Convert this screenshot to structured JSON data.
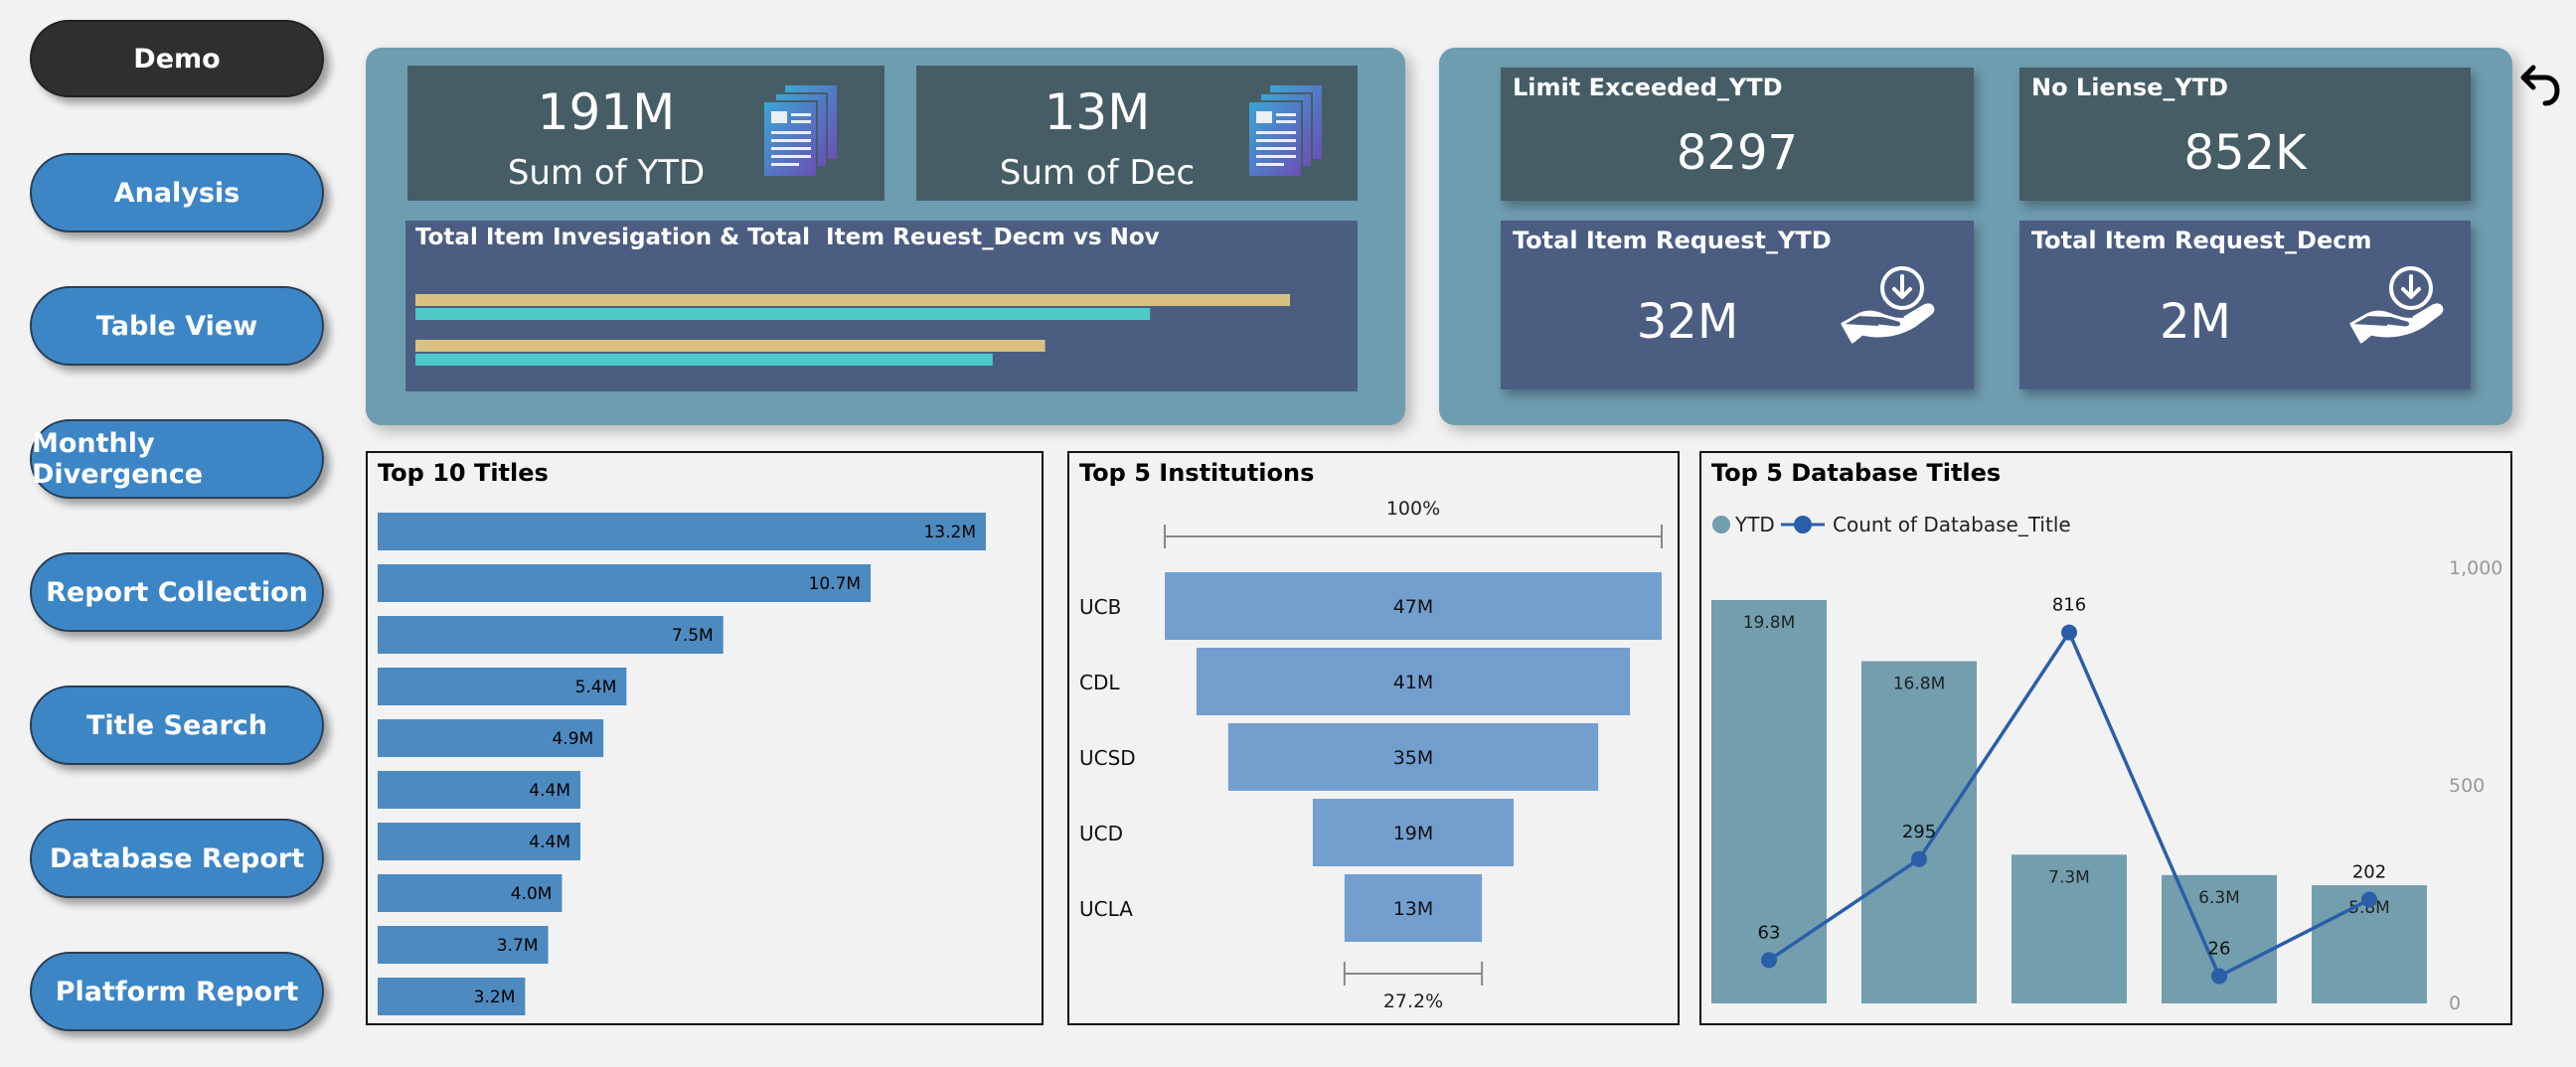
{
  "nav": {
    "items": [
      {
        "label": "Demo",
        "active": true
      },
      {
        "label": "Analysis"
      },
      {
        "label": "Table View"
      },
      {
        "label": "Monthly Divergence"
      },
      {
        "label": "Report Collection"
      },
      {
        "label": "Title Search"
      },
      {
        "label": "Database Report"
      },
      {
        "label": "Platform Report"
      }
    ]
  },
  "kpis": {
    "ytd_value": "191M",
    "ytd_label": "Sum of YTD",
    "dec_value": "13M",
    "dec_label": "Sum of Dec"
  },
  "right_cards": {
    "limit_title": "Limit Exceeded_YTD",
    "limit_value": "8297",
    "nolicense_title": "No Liense_YTD",
    "nolicense_value": "852K",
    "req_ytd_title": "Total Item Request_YTD",
    "req_ytd_value": "32M",
    "req_dec_title": "Total Item Request_Decm",
    "req_dec_value": "2M"
  },
  "colors": {
    "panel": "#6f9db0",
    "card_dark": "#465d66",
    "card_blue": "#4b5e82",
    "bar_tan": "#d9c182",
    "bar_teal": "#4ec9c9",
    "bar_blue": "#4d8ac0",
    "funnel": "#739fcf",
    "db_bar": "#729eae",
    "line": "#2b5ea8"
  },
  "chart_data": [
    {
      "type": "bar",
      "title": "Total Item Invesigation & Total  Item Reuest_Decm vs Nov",
      "orientation": "horizontal",
      "series": [
        {
          "name": "Investigation",
          "values": [
            1.0,
            0.72
          ],
          "color": "#d9c182"
        },
        {
          "name": "Request",
          "values": [
            0.84,
            0.66
          ],
          "color": "#4ec9c9"
        }
      ]
    },
    {
      "type": "bar",
      "title": "Top 10 Titles",
      "orientation": "horizontal",
      "values": [
        13.2,
        10.7,
        7.5,
        5.4,
        4.9,
        4.4,
        4.4,
        4.0,
        3.7,
        3.2
      ],
      "labels": [
        "13.2M",
        "10.7M",
        "7.5M",
        "5.4M",
        "4.9M",
        "4.4M",
        "4.4M",
        "4.0M",
        "3.7M",
        "3.2M"
      ],
      "xlim": [
        0,
        13.2
      ]
    },
    {
      "type": "bar",
      "subtype": "funnel",
      "title": "Top 5 Institutions",
      "categories": [
        "UCB",
        "CDL",
        "UCSD",
        "UCD",
        "UCLA"
      ],
      "values": [
        47,
        41,
        35,
        19,
        13
      ],
      "labels": [
        "47M",
        "41M",
        "35M",
        "19M",
        "13M"
      ],
      "top_pct": "100%",
      "bottom_pct": "27.2%"
    },
    {
      "type": "bar",
      "title": "Top 5 Database Titles",
      "legend": [
        "YTD",
        "Count of Database_Title"
      ],
      "bar_values": [
        19.8,
        16.8,
        7.3,
        6.3,
        5.8
      ],
      "bar_labels": [
        "19.8M",
        "16.8M",
        "7.3M",
        "6.3M",
        "5.8M"
      ],
      "bar_ylim": [
        0,
        19.8
      ],
      "line_values": [
        63,
        295,
        816,
        26,
        202
      ],
      "line_labels": [
        "63",
        "295",
        "816",
        "26",
        "202"
      ],
      "y2_ticks": [
        "1,000",
        "500",
        "0"
      ],
      "y2lim": [
        0,
        1000
      ]
    }
  ]
}
